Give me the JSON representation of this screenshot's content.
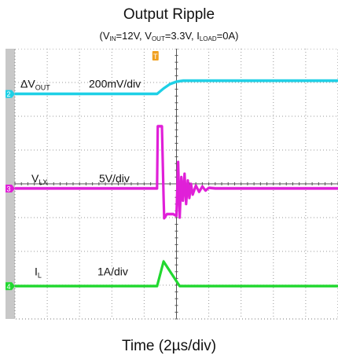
{
  "title": "Output Ripple",
  "subtitle": {
    "vin_label": "V",
    "vin_sub": "IN",
    "vin_value": "=12V, ",
    "vout_label": "V",
    "vout_sub": "OUT",
    "vout_value": "=3.3V, ",
    "iload_label": "I",
    "iload_sub": "LOAD",
    "iload_value": "=0A"
  },
  "xlabel": "Time (2µs/div)",
  "chart_data": {
    "type": "line",
    "xlabel": "Time (2µs/div)",
    "x_unit": "div",
    "xlim": [
      0,
      10
    ],
    "ylim_div": [
      -4,
      4
    ],
    "grid": true,
    "grid_divisions": [
      10,
      8
    ],
    "trigger_marker": {
      "label": "T",
      "x": 4.35,
      "color": "#f0a020"
    },
    "series": [
      {
        "key": "vout",
        "name_main": "ΔV",
        "name_sub": "OUT",
        "scale": "200mV/div",
        "channel": "2",
        "color": "#1ed0e6",
        "x": [
          0,
          4.4,
          4.6,
          4.8,
          5.0,
          5.2,
          10
        ],
        "y_div": [
          2.66,
          2.66,
          2.82,
          2.95,
          3.02,
          3.05,
          3.05
        ]
      },
      {
        "key": "vlx",
        "name_main": "V",
        "name_sub": "LX",
        "scale": "5V/div",
        "channel": "3",
        "color": "#e020d8",
        "x": [
          0,
          4.4,
          4.42,
          4.55,
          4.6,
          4.62,
          4.7,
          4.9,
          5.0,
          5.05,
          5.1,
          5.15,
          5.2,
          5.25,
          5.3,
          5.35,
          5.4,
          5.45,
          5.5,
          5.6,
          5.7,
          5.8,
          5.9,
          6.0,
          6.2,
          10
        ],
        "y_div": [
          -0.14,
          -0.14,
          1.7,
          1.7,
          -0.4,
          -1.02,
          -0.9,
          -0.9,
          -0.95,
          0.65,
          -1.0,
          0.2,
          -0.5,
          0.3,
          -0.6,
          0.1,
          -0.42,
          0.0,
          -0.32,
          -0.05,
          -0.24,
          -0.08,
          -0.2,
          -0.12,
          -0.14,
          -0.14
        ]
      },
      {
        "key": "il",
        "name_main": "I",
        "name_sub": "L",
        "scale": "1A/div",
        "channel": "4",
        "color": "#22d830",
        "x": [
          0,
          4.4,
          4.6,
          5.1,
          10
        ],
        "y_div": [
          -3.03,
          -3.03,
          -2.3,
          -3.03,
          -3.03
        ]
      }
    ]
  }
}
